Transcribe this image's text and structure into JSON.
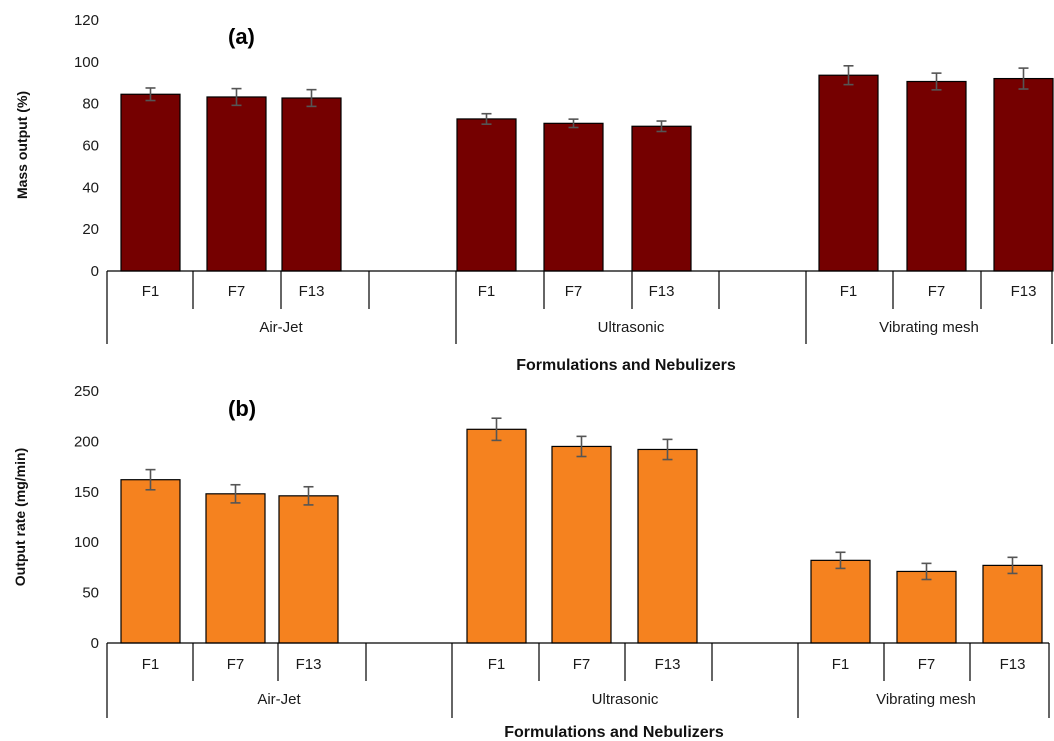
{
  "chart_data": [
    {
      "type": "bar",
      "panel_label": "(a)",
      "ylabel": "Mass output (%)",
      "xlabel": "Formulations and Nebulizers",
      "ylim": [
        0,
        120
      ],
      "yticks": [
        0,
        20,
        40,
        60,
        80,
        100,
        120
      ],
      "groups": [
        "Air-Jet",
        "Ultrasonic",
        "Vibrating mesh"
      ],
      "categories": [
        "F1",
        "F7",
        "F13"
      ],
      "bar_color": "#750000",
      "values": [
        [
          84.5,
          83.2,
          82.7
        ],
        [
          72.7,
          70.6,
          69.2
        ],
        [
          93.6,
          90.6,
          92.0
        ]
      ],
      "errors": [
        [
          3.0,
          4.0,
          4.0
        ],
        [
          2.5,
          2.0,
          2.5
        ],
        [
          4.5,
          4.0,
          5.0
        ]
      ]
    },
    {
      "type": "bar",
      "panel_label": "(b)",
      "ylabel": "Output rate (mg/min)",
      "xlabel": "Formulations and Nebulizers",
      "ylim": [
        0,
        250
      ],
      "yticks": [
        0,
        50,
        100,
        150,
        200,
        250
      ],
      "groups": [
        "Air-Jet",
        "Ultrasonic",
        "Vibrating mesh"
      ],
      "categories": [
        "F1",
        "F7",
        "F13"
      ],
      "bar_color": "#f5821f",
      "values": [
        [
          162,
          148,
          146
        ],
        [
          212,
          195,
          192
        ],
        [
          82,
          71,
          77
        ]
      ],
      "errors": [
        [
          10,
          9,
          9
        ],
        [
          11,
          10,
          10
        ],
        [
          8,
          8,
          8
        ]
      ]
    }
  ]
}
